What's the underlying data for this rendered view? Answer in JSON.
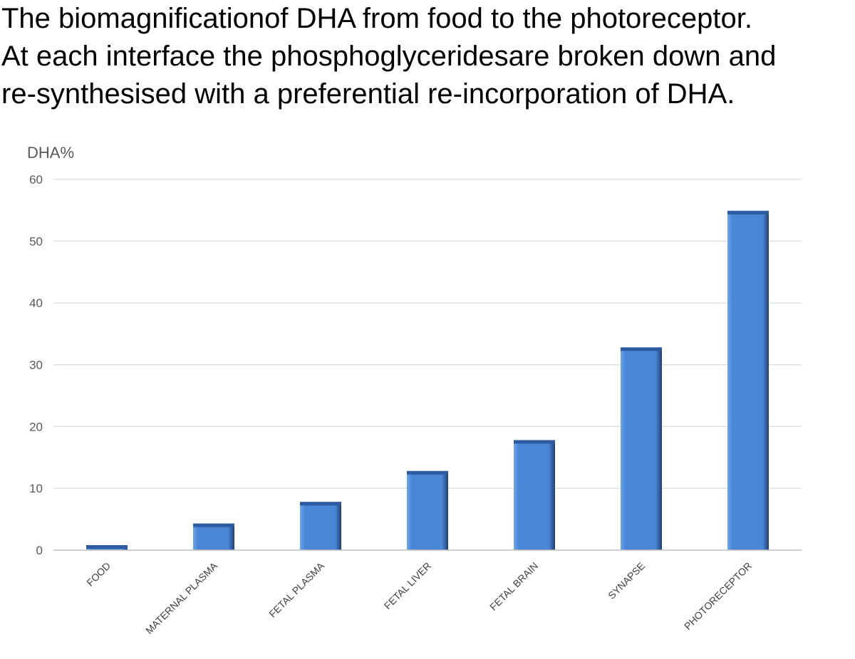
{
  "caption": {
    "lines": [
      "The biomagnificationof DHA from food to the photoreceptor.",
      "At each interface the phosphoglyceridesare broken down and",
      "re-synthesised with a preferential re-incorporation of DHA."
    ]
  },
  "colors": {
    "bar_main": "#4a86d6",
    "bar_light": "#6aa6ee",
    "bar_dark": "#1f3f78",
    "bar_top": "#2d5aa0",
    "gridline": "#d9d9d9",
    "baseline": "#bfbfbf"
  },
  "chart_data": {
    "type": "bar",
    "ylabel": "DHA%",
    "xlabel": "",
    "ylim": [
      0,
      60
    ],
    "yticks": [
      0,
      10,
      20,
      30,
      40,
      50,
      60
    ],
    "grid": true,
    "legend": "none",
    "categories": [
      "FOOD",
      "MATERNAL PLASMA",
      "FETAL PLASMA",
      "FETAL LIVER",
      "FETAL BRAIN",
      "SYNAPSE",
      "PHOTORECEPTOR"
    ],
    "values": [
      0.8,
      4.3,
      7.8,
      12.8,
      17.8,
      32.8,
      54.9
    ]
  }
}
